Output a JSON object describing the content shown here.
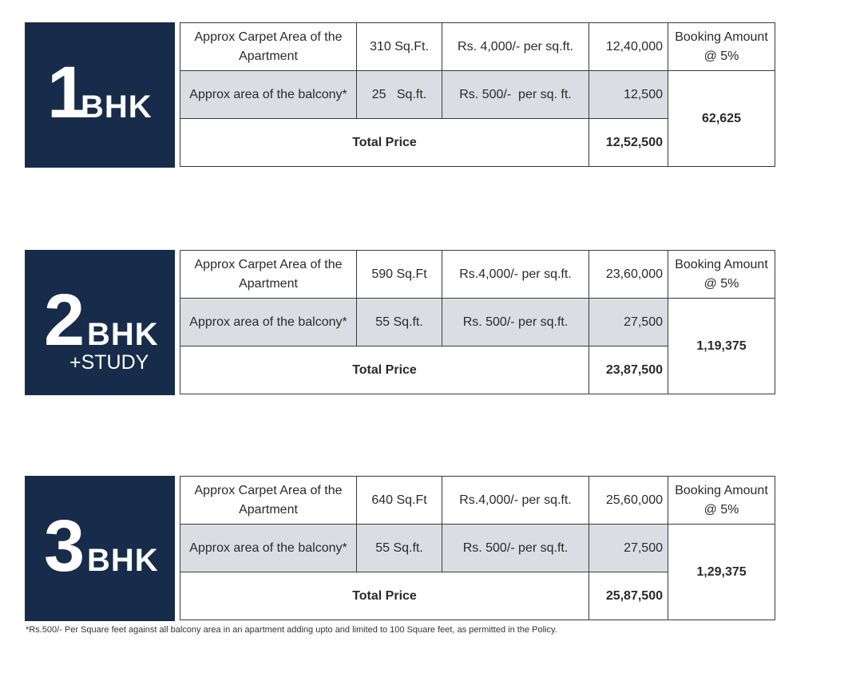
{
  "blocks": [
    {
      "number": "1",
      "label": "BHK",
      "sub": "",
      "carpet_label": "Approx Carpet Area of the Apartment",
      "carpet_area": "310 Sq.Ft.",
      "carpet_rate": "Rs. 4,000/- per sq.ft.",
      "carpet_amount": "12,40,000",
      "booking_label": "Booking Amount @ 5%",
      "balcony_label": "Approx area of the balcony*",
      "balcony_area": "25   Sq.ft.",
      "balcony_rate": "Rs. 500/-  per sq. ft.",
      "balcony_amount": "12,500",
      "booking_amount": "62,625",
      "total_label": "Total Price",
      "total": "12,52,500"
    },
    {
      "number": "2",
      "label": "BHK",
      "sub": "+STUDY",
      "carpet_label": "Approx Carpet Area of the Apartment",
      "carpet_area": "590 Sq.Ft",
      "carpet_rate": "Rs.4,000/- per sq.ft.",
      "carpet_amount": "23,60,000",
      "booking_label": "Booking Amount @ 5%",
      "balcony_label": "Approx area of the balcony*",
      "balcony_area": "55 Sq.ft.",
      "balcony_rate": "Rs. 500/- per sq.ft.",
      "balcony_amount": "27,500",
      "booking_amount": "1,19,375",
      "total_label": "Total Price",
      "total": "23,87,500"
    },
    {
      "number": "3",
      "label": "BHK",
      "sub": "",
      "carpet_label": "Approx Carpet Area of the Apartment",
      "carpet_area": "640 Sq.Ft",
      "carpet_rate": "Rs.4,000/- per sq.ft.",
      "carpet_amount": "25,60,000",
      "booking_label": "Booking Amount @ 5%",
      "balcony_label": "Approx area of the balcony*",
      "balcony_area": "55 Sq.ft.",
      "balcony_rate": "Rs. 500/- per sq.ft.",
      "balcony_amount": "27,500",
      "booking_amount": "1,29,375",
      "total_label": "Total Price",
      "total": "25,87,500"
    }
  ],
  "footnote": "*Rs.500/- Per Square feet against all balcony area in an apartment adding upto and limited to 100 Square feet, as permitted in the Policy.",
  "colors": {
    "badge": "#162c4a",
    "shade": "#dcdde2"
  }
}
